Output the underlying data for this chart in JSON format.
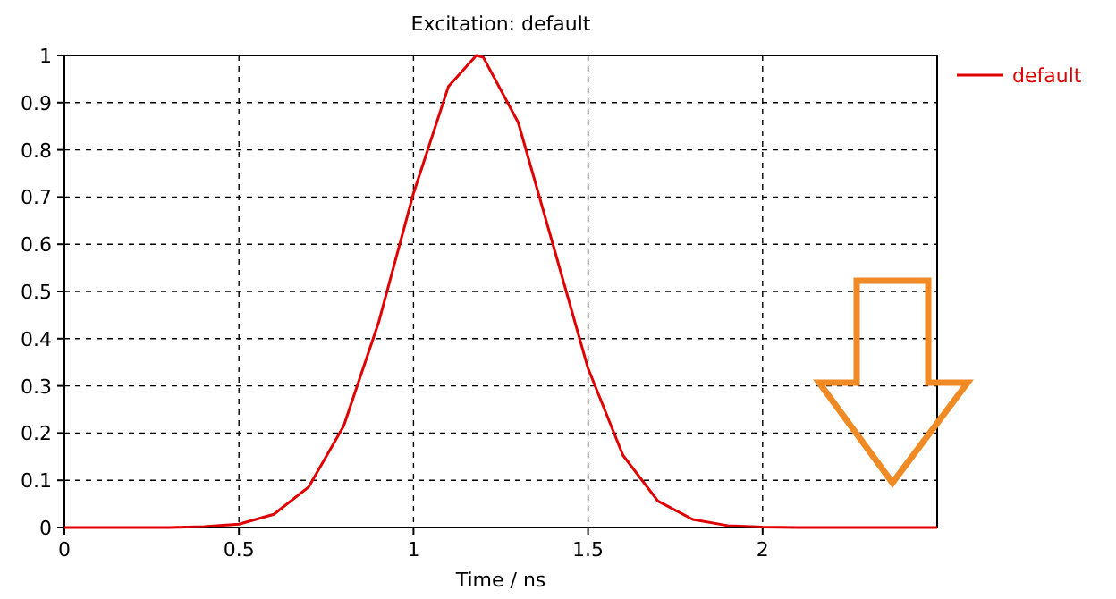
{
  "chart_data": {
    "type": "line",
    "title": "Excitation: default",
    "xlabel": "Time / ns",
    "xlim": [
      0,
      2.5
    ],
    "xticks": [
      0,
      0.5,
      1,
      1.5,
      2
    ],
    "ylim": [
      0,
      1
    ],
    "yticks": [
      0,
      0.1,
      0.2,
      0.3,
      0.4,
      0.5,
      0.6,
      0.7,
      0.8,
      0.9,
      1
    ],
    "grid": true,
    "legend": "right",
    "line_style": "solid",
    "marker": "none",
    "series": [
      {
        "name": "default",
        "color": "#e00000",
        "x": [
          0,
          0.3,
          0.4,
          0.5,
          0.6,
          0.7,
          0.8,
          0.9,
          1.0,
          1.1,
          1.18,
          1.2,
          1.3,
          1.4,
          1.5,
          1.6,
          1.7,
          1.8,
          1.9,
          2.0,
          2.1,
          2.3,
          2.5
        ],
        "values": [
          0,
          0,
          0.002,
          0.007,
          0.028,
          0.086,
          0.215,
          0.434,
          0.708,
          0.934,
          1,
          0.996,
          0.858,
          0.598,
          0.337,
          0.153,
          0.056,
          0.017,
          0.004,
          0.001,
          0,
          0,
          0
        ]
      }
    ]
  }
}
